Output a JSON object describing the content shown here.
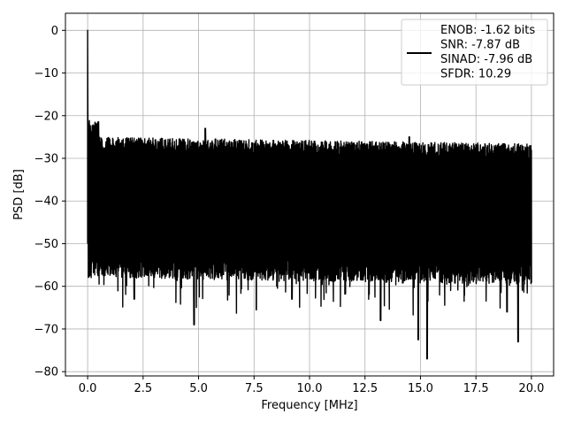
{
  "chart_data": {
    "type": "line",
    "xlabel": "Frequency [MHz]",
    "ylabel": "PSD [dB]",
    "xlim": [
      -1.0,
      21.0
    ],
    "ylim": [
      -81.0,
      4.0
    ],
    "xticks": [
      0.0,
      2.5,
      5.0,
      7.5,
      10.0,
      12.5,
      15.0,
      17.5,
      20.0
    ],
    "xtick_labels": [
      "0.0",
      "2.5",
      "5.0",
      "7.5",
      "10.0",
      "12.5",
      "15.0",
      "17.5",
      "20.0"
    ],
    "yticks": [
      0,
      -10,
      -20,
      -30,
      -40,
      -50,
      -60,
      -70,
      -80
    ],
    "ytick_labels": [
      "0",
      "−10",
      "−20",
      "−30",
      "−40",
      "−50",
      "−60",
      "−70",
      "−80"
    ],
    "grid": true,
    "legend_position": "top-right",
    "series": [
      {
        "name": "ENOB: -1.62 bits\nSNR: -7.87 dB\nSINAD: -7.96 dB\nSFDR: 10.29",
        "color": "#000000",
        "description_values": {
          "peak": [
            0.0,
            0.0
          ],
          "noise_band_top_db": -28,
          "noise_band_bottom_db": -55,
          "deep_dips": [
            [
              2.1,
              -63
            ],
            [
              4.8,
              -69
            ],
            [
              7.6,
              -65.5
            ],
            [
              9.2,
              -63
            ],
            [
              13.2,
              -68
            ],
            [
              14.9,
              -72.5
            ],
            [
              15.3,
              -77
            ],
            [
              18.9,
              -66
            ],
            [
              19.4,
              -73
            ]
          ],
          "tall_spikes": [
            [
              0.05,
              -22
            ],
            [
              5.3,
              -23
            ],
            [
              14.5,
              -25
            ]
          ]
        }
      }
    ]
  },
  "legend": {
    "lines": [
      "ENOB: -1.62 bits",
      "SNR: -7.87 dB",
      "SINAD: -7.96 dB",
      "SFDR: 10.29"
    ]
  }
}
